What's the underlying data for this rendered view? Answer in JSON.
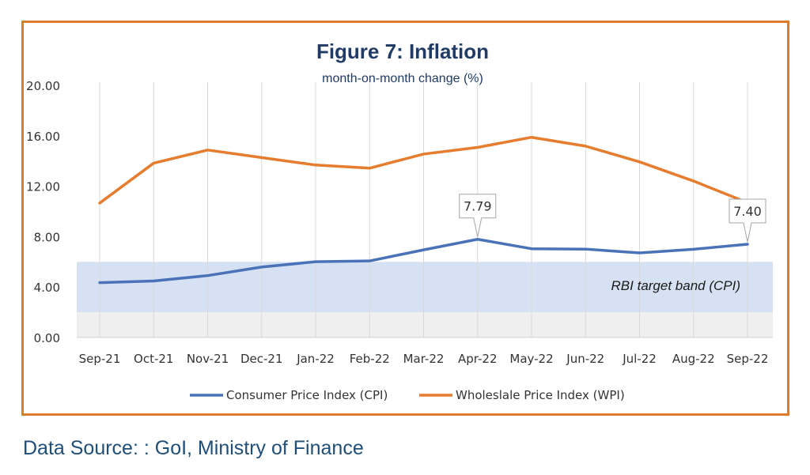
{
  "chart_data": {
    "type": "line",
    "title": "Figure 7: Inflation",
    "subtitle": "month-on-month change (%)",
    "categories": [
      "Sep-21",
      "Oct-21",
      "Nov-21",
      "Dec-21",
      "Jan-22",
      "Feb-22",
      "Mar-22",
      "Apr-22",
      "May-22",
      "Jun-22",
      "Jul-22",
      "Aug-22",
      "Sep-22"
    ],
    "y_ticks": [
      "0.00",
      "4.00",
      "8.00",
      "12.00",
      "16.00",
      "20.00"
    ],
    "ylim": [
      0,
      20
    ],
    "grid": "vertical gridlines",
    "legend_position": "bottom",
    "series": [
      {
        "name": "Consumer Price Index (CPI)",
        "color": "#4a72b8",
        "values": [
          4.35,
          4.48,
          4.91,
          5.59,
          6.01,
          6.07,
          6.95,
          7.79,
          7.04,
          7.01,
          6.71,
          7.0,
          7.4
        ]
      },
      {
        "name": "Wholeslale Price Index (WPI)",
        "color": "#e67c2e",
        "values": [
          10.66,
          13.83,
          14.87,
          14.27,
          13.68,
          13.43,
          14.55,
          15.08,
          15.88,
          15.18,
          13.93,
          12.41,
          10.7
        ]
      }
    ],
    "data_labels": [
      {
        "series": 0,
        "category": "Apr-22",
        "text": "7.79"
      },
      {
        "series": 0,
        "category": "Sep-22",
        "text": "7.40"
      }
    ],
    "bands": [
      {
        "label": "RBI target band (CPI)",
        "y_from": 2,
        "y_to": 6,
        "color": "#d6e2f3"
      },
      {
        "label": "",
        "y_from": 0,
        "y_to": 2,
        "color": "#efefef"
      }
    ]
  },
  "source_note": "Data Source: : GoI, Ministry of Finance"
}
